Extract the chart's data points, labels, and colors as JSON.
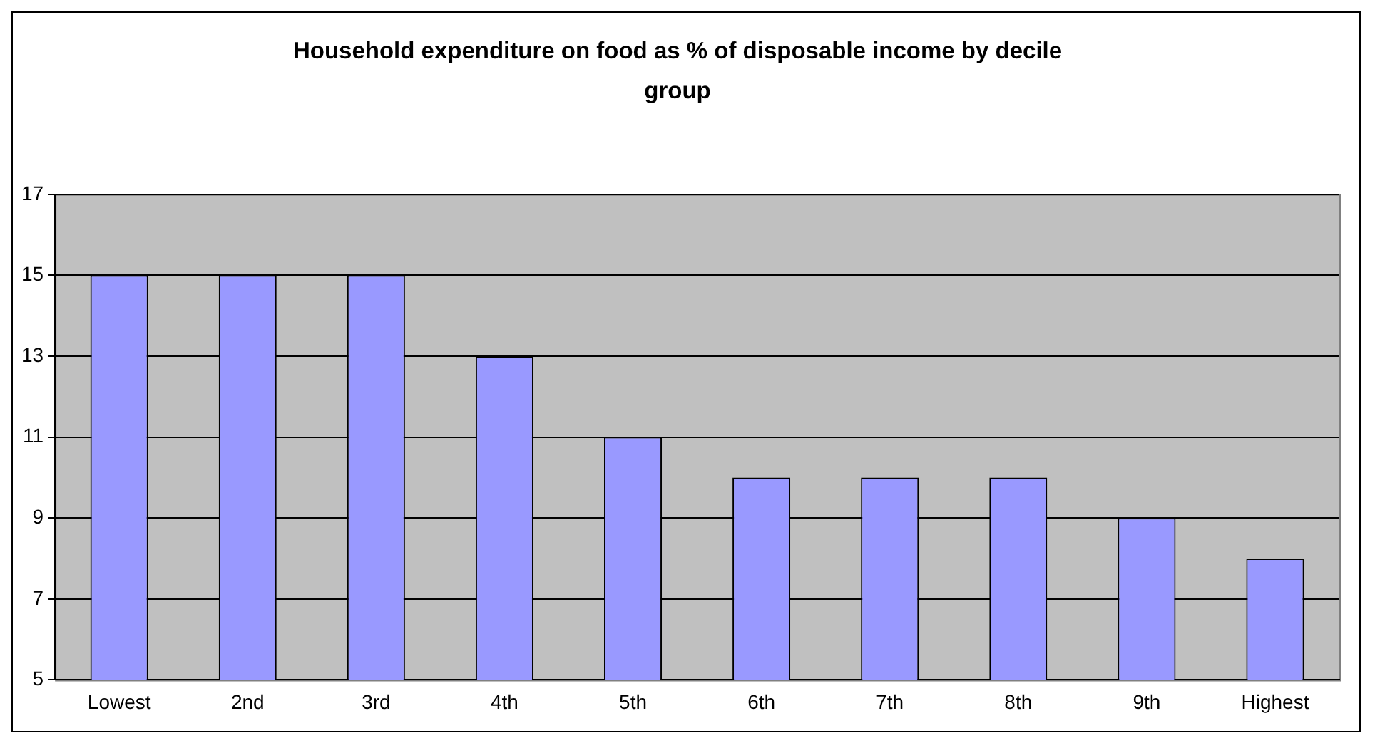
{
  "chart_data": {
    "type": "bar",
    "title": "Household expenditure on food as % of disposable income by decile group",
    "categories": [
      "Lowest",
      "2nd",
      "3rd",
      "4th",
      "5th",
      "6th",
      "7th",
      "8th",
      "9th",
      "Highest"
    ],
    "values": [
      15,
      15,
      15,
      13,
      11,
      10,
      10,
      10,
      9,
      8
    ],
    "color": "#9999ff",
    "ylim": [
      5,
      17
    ],
    "yticks": [
      5,
      7,
      9,
      11,
      13,
      15,
      17
    ],
    "grid": "y",
    "legend": false
  }
}
